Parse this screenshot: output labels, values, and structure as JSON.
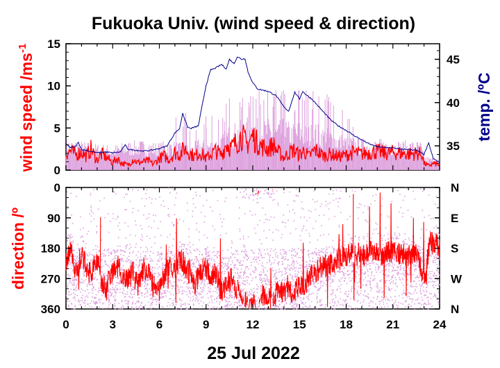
{
  "chart_data": [
    {
      "type": "line",
      "title": "Fukuoka Univ. (wind speed & direction)",
      "ylabel": "wind speed /ms",
      "ylabel_sup": "-1",
      "y2label": "temp. /ºC",
      "ylim": [
        0,
        15
      ],
      "y2lim": [
        32.2,
        46.8
      ],
      "xlim": [
        0,
        24
      ],
      "yticks": [
        0,
        5,
        10,
        15
      ],
      "y2ticks": [
        35,
        40,
        45
      ],
      "colors": {
        "gust": "#dda0dd",
        "speed": "#ff0000",
        "temp": "#00008b"
      },
      "series": [
        {
          "key": "temperature",
          "x": [
            0,
            0.3,
            0.6,
            0.8,
            1.0,
            1.5,
            2,
            2.5,
            3,
            3.5,
            3.8,
            4,
            4.5,
            5,
            5.5,
            6,
            6.5,
            7,
            7.3,
            7.5,
            7.8,
            8,
            8.5,
            9,
            9.3,
            9.5,
            10,
            10.3,
            10.5,
            10.8,
            11,
            11.3,
            11.5,
            11.7,
            12,
            12.3,
            12.5,
            13,
            13.5,
            14,
            14.3,
            14.7,
            15,
            15.2,
            15.5,
            15.8,
            16,
            16.5,
            17,
            17.5,
            18,
            18.5,
            19,
            19.5,
            20,
            20.5,
            21,
            21.5,
            22,
            22.5,
            23,
            23.3,
            23.6,
            24
          ],
          "y": [
            35.2,
            34.8,
            34.9,
            35.4,
            34.6,
            34.4,
            34.2,
            34.3,
            34.2,
            34.3,
            35.1,
            34.6,
            34.5,
            34.4,
            34.5,
            34.7,
            35.0,
            36.5,
            37.0,
            38.8,
            37.2,
            37.0,
            37.3,
            42.0,
            43.8,
            43.9,
            44.4,
            43.9,
            45.0,
            44.5,
            45.3,
            45.0,
            45.1,
            43.5,
            42.3,
            41.6,
            41.5,
            41.3,
            40.8,
            39.5,
            39.0,
            41.2,
            40.4,
            41.3,
            40.8,
            40.4,
            40.0,
            39.0,
            38.0,
            37.3,
            36.8,
            36.2,
            35.7,
            35.2,
            34.9,
            34.8,
            34.8,
            34.6,
            34.6,
            34.5,
            34.0,
            35.3,
            33.5,
            33.1
          ]
        },
        {
          "key": "gust_upper",
          "x": [
            0,
            1,
            2,
            3,
            4,
            5,
            6,
            6.5,
            7,
            7.5,
            8,
            8.5,
            9,
            9.5,
            10,
            10.5,
            11,
            11.5,
            12,
            12.5,
            13,
            13.5,
            14,
            14.5,
            15,
            15.5,
            16,
            16.5,
            17,
            17.5,
            18,
            18.5,
            19,
            20,
            21,
            22,
            22.8,
            23,
            23.5,
            24
          ],
          "y": [
            3.8,
            3.5,
            3.2,
            3.0,
            3.5,
            3.6,
            3.3,
            3.6,
            3.5,
            3.2,
            3.0,
            3.8,
            3.6,
            3.8,
            4.2,
            5.5,
            5.8,
            6.3,
            6.5,
            6.0,
            6.2,
            5.6,
            6.3,
            5.6,
            6.0,
            5.4,
            5.8,
            5.3,
            5.0,
            4.5,
            4.2,
            4.0,
            3.8,
            3.8,
            3.6,
            3.6,
            3.5,
            1.8,
            1.5,
            1.4
          ]
        },
        {
          "key": "wind_speed",
          "x": [
            0,
            0.3,
            0.6,
            1,
            1.3,
            1.6,
            2,
            2.3,
            2.6,
            3,
            3.3,
            3.6,
            4,
            4.3,
            4.6,
            5,
            5.3,
            5.6,
            6,
            6.3,
            6.6,
            7,
            7.3,
            7.6,
            8,
            8.3,
            8.6,
            9,
            9.3,
            9.6,
            10,
            10.3,
            10.6,
            11,
            11.3,
            11.6,
            12,
            12.3,
            12.6,
            13,
            13.3,
            13.6,
            14,
            14.3,
            14.6,
            15,
            15.3,
            15.6,
            16,
            16.3,
            16.6,
            17,
            17.5,
            18,
            18.5,
            19,
            19.5,
            20,
            20.5,
            21,
            21.5,
            22,
            22.5,
            22.9,
            23,
            23.3,
            23.6,
            24
          ],
          "y": [
            2.0,
            2.3,
            1.8,
            2.2,
            1.6,
            2.5,
            1.2,
            1.9,
            1.5,
            0.9,
            1.4,
            0.8,
            0.6,
            1.3,
            0.9,
            1.0,
            1.1,
            0.7,
            1.4,
            1.7,
            1.2,
            2.1,
            1.8,
            2.6,
            2.0,
            1.6,
            2.2,
            1.4,
            1.9,
            2.3,
            1.8,
            3.2,
            2.6,
            3.4,
            4.2,
            3.0,
            4.0,
            3.2,
            2.8,
            2.5,
            3.0,
            2.2,
            1.5,
            2.0,
            2.4,
            1.8,
            2.3,
            1.6,
            2.4,
            2.0,
            1.7,
            1.9,
            1.6,
            1.8,
            2.1,
            1.9,
            2.1,
            2.2,
            2.0,
            2.1,
            2.0,
            1.9,
            2.0,
            1.9,
            0.8,
            0.5,
            0.8,
            0.6
          ]
        },
        {
          "key": "direction",
          "x": [
            0,
            0.3,
            0.6,
            1,
            1.3,
            1.6,
            2,
            2.3,
            2.6,
            3,
            3.3,
            3.6,
            4,
            4.3,
            4.6,
            5,
            5.3,
            5.6,
            6,
            6.3,
            6.6,
            7,
            7.3,
            7.6,
            8,
            8.3,
            8.6,
            9,
            9.3,
            9.6,
            10,
            10.3,
            10.6,
            11,
            11.3,
            11.6,
            12,
            12.3,
            12.6,
            13,
            13.3,
            13.6,
            14,
            14.3,
            14.6,
            15,
            15.3,
            15.6,
            16,
            16.5,
            17,
            17.5,
            18,
            18.5,
            19,
            19.5,
            20,
            20.5,
            21,
            21.5,
            22,
            22.5,
            22.9,
            23.1,
            23.3,
            23.6,
            24
          ],
          "y": [
            215,
            190,
            250,
            200,
            235,
            260,
            210,
            280,
            300,
            245,
            230,
            260,
            275,
            250,
            295,
            235,
            260,
            290,
            310,
            270,
            225,
            245,
            210,
            230,
            260,
            290,
            250,
            240,
            270,
            255,
            310,
            290,
            270,
            300,
            330,
            340,
            340,
            350,
            320,
            330,
            345,
            300,
            310,
            290,
            325,
            280,
            295,
            270,
            250,
            235,
            225,
            215,
            200,
            195,
            205,
            195,
            190,
            200,
            185,
            195,
            205,
            200,
            250,
            290,
            175,
            160,
            180
          ]
        }
      ]
    },
    {
      "type": "scatter",
      "ylabel": "direction /º",
      "ylim": [
        360,
        0
      ],
      "xlim": [
        0,
        24
      ],
      "yticks": [
        0,
        90,
        180,
        270,
        360
      ],
      "y2ticklabels": [
        "N",
        "E",
        "S",
        "W",
        "N"
      ],
      "xticks": [
        0,
        3,
        6,
        9,
        12,
        15,
        18,
        21,
        24
      ],
      "xlabel": "25 Jul 2022"
    }
  ]
}
